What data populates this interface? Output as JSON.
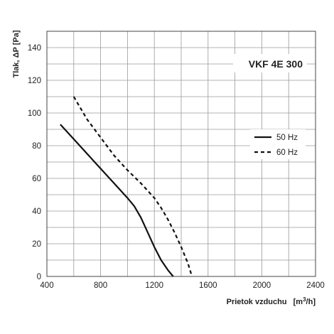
{
  "chart_data": {
    "type": "line",
    "title": "VKF 4E 300",
    "xlabel": "Prietok vzduchu",
    "xlabel_unit_prefix": "[m",
    "xlabel_unit_sup": "3",
    "xlabel_unit_suffix": "/h]",
    "ylabel": "Tlak, ΔP [Pa]",
    "xlim": [
      400,
      2400
    ],
    "ylim": [
      0,
      150
    ],
    "xticks": [
      400,
      800,
      1200,
      1600,
      2000,
      2400
    ],
    "yticks": [
      0,
      20,
      40,
      60,
      80,
      100,
      120,
      140
    ],
    "x_minor_step": 200,
    "y_minor_step": 10,
    "grid": true,
    "legend_position": "right",
    "series": [
      {
        "name": "50 Hz",
        "style": "solid",
        "color": "#111111",
        "x": [
          500,
          600,
          700,
          800,
          900,
          1000,
          1050,
          1100,
          1150,
          1200,
          1250,
          1300,
          1340
        ],
        "y": [
          93,
          84,
          75,
          66,
          57,
          48,
          43,
          36,
          27,
          18,
          10,
          4,
          0
        ]
      },
      {
        "name": "60 Hz",
        "style": "dashed",
        "color": "#111111",
        "x": [
          600,
          700,
          800,
          900,
          1000,
          1100,
          1200,
          1250,
          1300,
          1350,
          1400,
          1450,
          1480
        ],
        "y": [
          110,
          96,
          85,
          74,
          65,
          57,
          48,
          42,
          35,
          27,
          18,
          8,
          0
        ]
      }
    ]
  }
}
